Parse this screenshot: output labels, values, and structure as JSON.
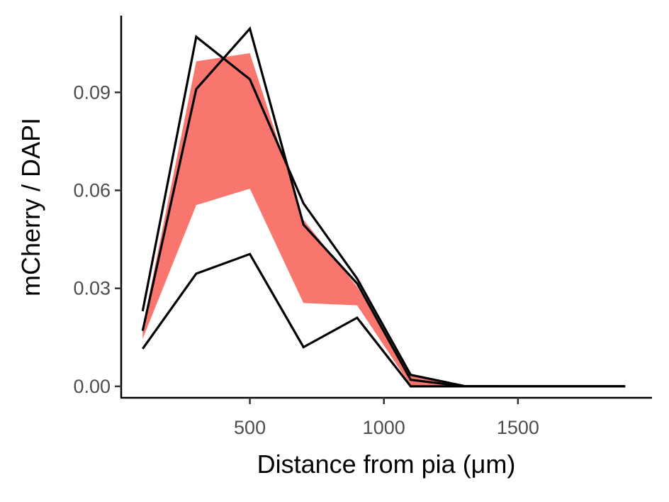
{
  "chart_data": {
    "type": "line",
    "xlabel": "Distance from pia (μm)",
    "ylabel": "mCherry / DAPI",
    "xlim": [
      20,
      2000
    ],
    "ylim": [
      -0.0035,
      0.1135
    ],
    "x_ticks": [
      500,
      1000,
      1500
    ],
    "x_tick_labels": [
      "500",
      "1000",
      "1500"
    ],
    "y_ticks": [
      0,
      0.03,
      0.06,
      0.09
    ],
    "y_tick_labels": [
      "0.00",
      "0.03",
      "0.06",
      "0.09"
    ],
    "grid": false,
    "legend": "none",
    "x": [
      100,
      300,
      500,
      700,
      900,
      1100,
      1300,
      1500,
      1700,
      1900
    ],
    "band": {
      "color": "#f8766d",
      "lower": [
        0.0145,
        0.0555,
        0.0605,
        0.0255,
        0.0248,
        0.0002,
        0,
        0,
        0,
        0
      ],
      "upper": [
        0.018,
        0.0995,
        0.102,
        0.051,
        0.0305,
        0.0035,
        0,
        0,
        0,
        0
      ]
    },
    "series": [
      {
        "color": "#000000",
        "values": [
          0.023,
          0.107,
          0.094,
          0.056,
          0.033,
          0.0035,
          0.0001,
          0,
          0,
          0
        ]
      },
      {
        "color": "#000000",
        "values": [
          0.017,
          0.091,
          0.1095,
          0.0495,
          0.0315,
          0.002,
          0,
          0,
          0,
          0
        ]
      },
      {
        "color": "#000000",
        "values": [
          0.0115,
          0.0345,
          0.0405,
          0.012,
          0.021,
          0,
          0,
          0,
          0,
          0
        ]
      }
    ]
  }
}
